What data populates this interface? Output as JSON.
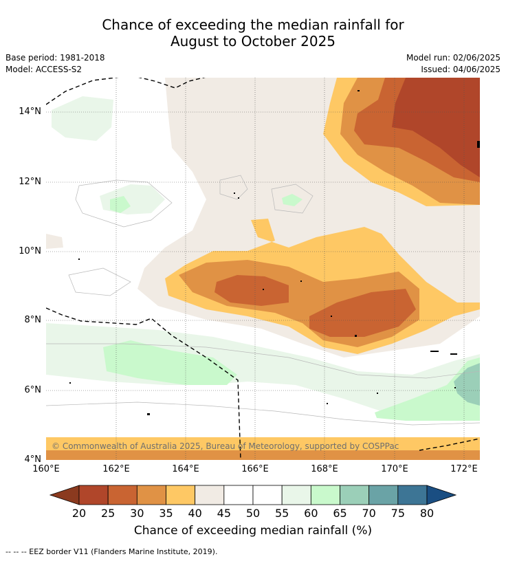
{
  "title": {
    "line1": "Chance of exceeding the median rainfall for",
    "line2": "August to October 2025"
  },
  "meta": {
    "base_period": "Base period: 1981-2018",
    "model": "Model: ACCESS-S2",
    "model_run": "Model run: 02/06/2025",
    "issued": "Issued: 04/06/2025"
  },
  "axes": {
    "lat_labels": [
      "14°N",
      "12°N",
      "10°N",
      "8°N",
      "6°N",
      "4°N"
    ],
    "lon_labels": [
      "160°E",
      "162°E",
      "164°E",
      "166°E",
      "168°E",
      "170°E",
      "172°E"
    ]
  },
  "copyright": "© Commonwealth of Australia 2025, Bureau of Meteorology, supported by COSPPac",
  "colorbar": {
    "ticks": [
      "20",
      "25",
      "30",
      "35",
      "40",
      "45",
      "50",
      "55",
      "60",
      "65",
      "70",
      "75",
      "80"
    ],
    "title": "Chance of exceeding median rainfall (%)",
    "low_color": "#8b3a1f",
    "high_color": "#1a4e82",
    "colors": [
      "#b0462a",
      "#c96432",
      "#e09245",
      "#fec864",
      "#f1ebe4",
      "#ffffff",
      "#ffffff",
      "#e9f6e9",
      "#c9f9cc",
      "#9bcfb8",
      "#6aa3a6",
      "#3d7595"
    ]
  },
  "footer": "--  --  -- EEZ border V11 (Flanders Marine Institute, 2019)."
}
